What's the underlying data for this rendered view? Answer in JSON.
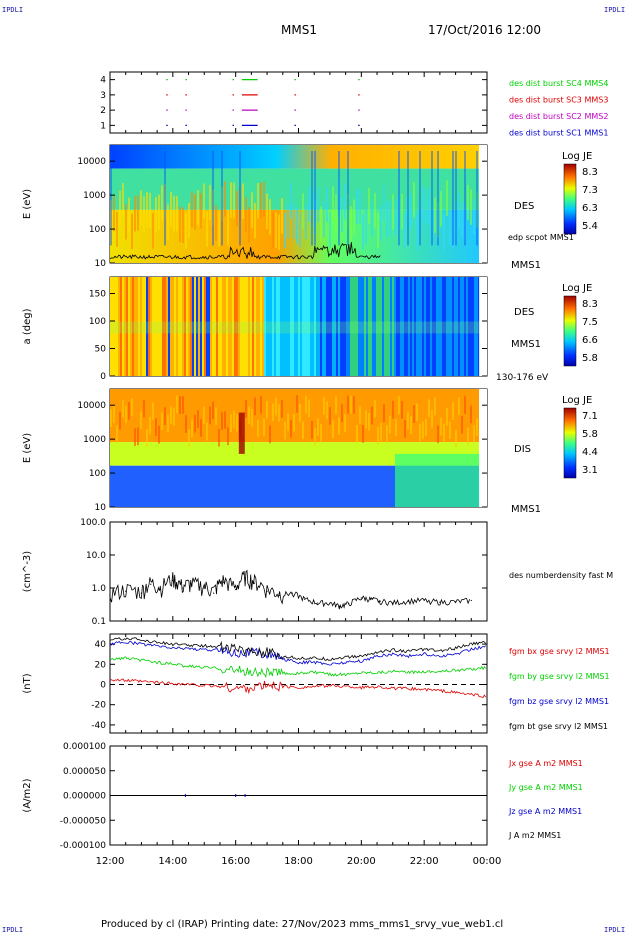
{
  "corners": [
    "IPDLI",
    "IPDLI",
    "IPDLI",
    "IPDLI"
  ],
  "header": {
    "spacecraft": "MMS1",
    "datetime": "17/Oct/2016 12:00"
  },
  "footer": "Produced by cl (IRAP)   Printing date: 27/Nov/2023   mms_mms1_srvy_vue_web1.cl",
  "colors": {
    "black": "#000000",
    "red": "#e00000",
    "green": "#00d000",
    "blue": "#0000d0",
    "magenta": "#c000c0"
  },
  "chart_data": [
    {
      "type": "line",
      "panel": "burst",
      "x_ticks": [
        "12:00",
        "14:00",
        "16:00",
        "18:00",
        "20:00",
        "22:00",
        "00:00"
      ],
      "xlim_hours": [
        12,
        24
      ],
      "ylim": [
        0.5,
        4.5
      ],
      "y_ticks": [
        "1",
        "2",
        "3",
        "4"
      ],
      "series": [
        {
          "name": "des dist burst SC1 MMS1",
          "level": 1,
          "color": "#0000d0",
          "intervals": [
            [
              13.79,
              13.8
            ],
            [
              14.4,
              14.42
            ],
            [
              15.9,
              15.94
            ],
            [
              16.2,
              16.7
            ],
            [
              17.87,
              17.9
            ],
            [
              19.9,
              19.92
            ]
          ]
        },
        {
          "name": "des dist burst SC2 MMS2",
          "level": 2,
          "color": "#c000c0",
          "intervals": [
            [
              13.79,
              13.8
            ],
            [
              14.4,
              14.42
            ],
            [
              15.9,
              15.94
            ],
            [
              16.2,
              16.7
            ],
            [
              17.87,
              17.9
            ],
            [
              19.9,
              19.92
            ]
          ]
        },
        {
          "name": "des dist burst SC3 MMS3",
          "level": 3,
          "color": "#e00000",
          "intervals": [
            [
              13.79,
              13.8
            ],
            [
              14.4,
              14.42
            ],
            [
              15.9,
              15.94
            ],
            [
              16.2,
              16.7
            ],
            [
              17.87,
              17.9
            ],
            [
              19.9,
              19.92
            ]
          ]
        },
        {
          "name": "des dist burst SC4 MMS4",
          "level": 4,
          "color": "#00d000",
          "intervals": [
            [
              13.79,
              13.8
            ],
            [
              14.4,
              14.42
            ],
            [
              15.9,
              15.94
            ],
            [
              16.2,
              16.7
            ],
            [
              17.87,
              17.9
            ],
            [
              19.9,
              19.92
            ]
          ]
        }
      ]
    },
    {
      "type": "heatmap",
      "panel": "des_energy",
      "y_ticks": [
        "10",
        "100",
        "1000",
        "10000"
      ],
      "yscale": "log",
      "ylabel": "E (eV)",
      "instrument": "DES",
      "spacecraft": "MMS1",
      "overlay_name": "edp scpot MMS1",
      "colorbar": {
        "title": "Log JE",
        "labels": [
          "8.3",
          "7.3",
          "6.3",
          "5.4"
        ]
      }
    },
    {
      "type": "heatmap",
      "panel": "des_pitch",
      "y_ticks": [
        "0",
        "50",
        "100",
        "150"
      ],
      "ylim": [
        0,
        180
      ],
      "ylabel": "a (deg)",
      "instrument": "DES",
      "spacecraft": "MMS1",
      "energy_band": "130-176 eV",
      "colorbar": {
        "title": "Log JE",
        "labels": [
          "8.3",
          "7.5",
          "6.6",
          "5.8"
        ]
      }
    },
    {
      "type": "heatmap",
      "panel": "dis_energy",
      "y_ticks": [
        "10",
        "100",
        "1000",
        "10000"
      ],
      "yscale": "log",
      "ylabel": "E (eV)",
      "instrument": "DIS",
      "spacecraft": "MMS1",
      "colorbar": {
        "title": "Log JE",
        "labels": [
          "7.1",
          "5.8",
          "4.4",
          "3.1"
        ]
      }
    },
    {
      "type": "line",
      "panel": "density",
      "yscale": "log",
      "ylim": [
        0.1,
        100
      ],
      "y_ticks": [
        "0.1",
        "1.0",
        "10.0",
        "100.0"
      ],
      "ylabel": "(cm^-3)",
      "series": [
        {
          "name": "des numberdensity fast M",
          "color": "#000000",
          "x": [
            12.0,
            12.5,
            13.0,
            13.3,
            13.6,
            14.0,
            14.3,
            14.6,
            15.0,
            15.3,
            15.6,
            16.0,
            16.3,
            16.6,
            17.0,
            17.4,
            17.8,
            18.2,
            18.6,
            19.0,
            19.3,
            19.6,
            20.0,
            20.3,
            20.6,
            21.0,
            21.5,
            22.0,
            22.5,
            23.0,
            23.5
          ],
          "y": [
            0.6,
            0.8,
            0.7,
            1.3,
            0.9,
            1.7,
            1.0,
            1.2,
            1.0,
            0.7,
            1.5,
            0.9,
            2.0,
            1.4,
            0.8,
            0.6,
            0.7,
            0.45,
            0.35,
            0.35,
            0.28,
            0.33,
            0.5,
            0.45,
            0.4,
            0.35,
            0.4,
            0.42,
            0.37,
            0.38,
            0.42
          ]
        }
      ]
    },
    {
      "type": "line",
      "panel": "magnetic_field",
      "ylim": [
        -48,
        50
      ],
      "y_ticks": [
        "-40",
        "-20",
        "0",
        "20",
        "40"
      ],
      "ylabel": "(nT)",
      "x": [
        12.0,
        12.5,
        13.0,
        13.5,
        14.0,
        14.5,
        15.0,
        15.5,
        16.0,
        16.5,
        17.0,
        17.5,
        18.0,
        18.5,
        19.0,
        19.5,
        20.0,
        20.5,
        21.0,
        21.5,
        22.0,
        22.5,
        23.0,
        23.5,
        24.0
      ],
      "series": [
        {
          "name": "fgm bx gse srvy l2 MMS1",
          "color": "#e00000",
          "y": [
            5,
            4,
            3,
            2,
            1,
            0,
            -1,
            -2,
            -4,
            -3,
            -1,
            -2,
            -3,
            -2,
            -1,
            -2,
            -3,
            -2,
            -4,
            -4,
            -5,
            -6,
            -8,
            -10,
            -12
          ]
        },
        {
          "name": "fgm by gse srvy l2 MMS1",
          "color": "#00d000",
          "y": [
            25,
            26,
            24,
            22,
            20,
            18,
            17,
            16,
            14,
            12,
            12,
            11,
            11,
            12,
            10,
            10,
            12,
            12,
            13,
            12,
            13,
            13,
            14,
            15,
            17
          ]
        },
        {
          "name": "fgm bz gse srvy l2 MMS1",
          "color": "#0000d0",
          "y": [
            40,
            42,
            40,
            38,
            36,
            36,
            34,
            34,
            32,
            32,
            30,
            25,
            22,
            22,
            20,
            22,
            23,
            28,
            30,
            28,
            30,
            28,
            30,
            35,
            38
          ]
        },
        {
          "name": "fgm bt gse srvy l2 MMS1",
          "color": "#000000",
          "y": [
            44,
            46,
            44,
            42,
            40,
            39,
            38,
            38,
            35,
            34,
            32,
            28,
            26,
            26,
            25,
            27,
            28,
            32,
            34,
            33,
            35,
            33,
            36,
            40,
            42
          ]
        }
      ]
    },
    {
      "type": "line",
      "panel": "current_density",
      "ylim": [
        -0.0001,
        0.0001
      ],
      "y_ticks": [
        "-0.000100",
        "-0.000050",
        "0.000000",
        "0.000050",
        "0.000100"
      ],
      "ylabel": "(A/m2)",
      "x": [
        12.0,
        23.9
      ],
      "series": [
        {
          "name": "Jx gse A m2 MMS1",
          "color": "#e00000",
          "y": [
            0,
            0
          ]
        },
        {
          "name": "Jy gse A m2 MMS1",
          "color": "#00d000",
          "y": [
            0,
            0
          ]
        },
        {
          "name": "Jz gse A m2 MMS1",
          "color": "#0000d0",
          "y": [
            0,
            0
          ]
        },
        {
          "name": "J A m2 MMS1",
          "color": "#000000",
          "y": [
            0,
            0
          ]
        }
      ]
    }
  ]
}
